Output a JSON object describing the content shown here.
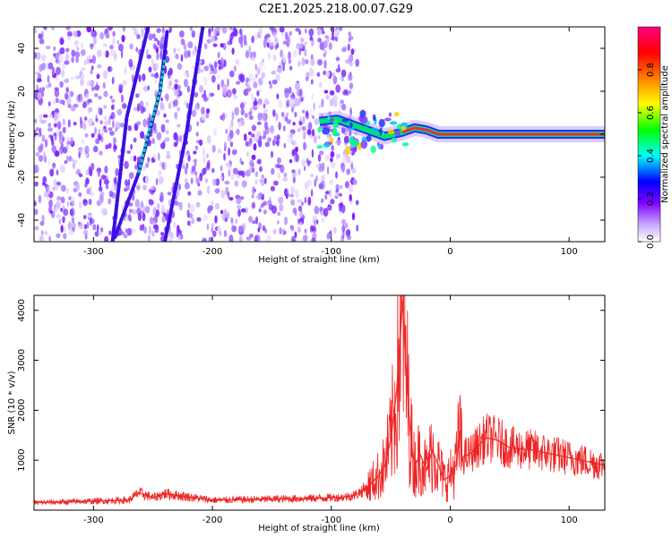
{
  "title": "C2E1.2025.218.00.07.G29",
  "chart_data": [
    {
      "type": "heatmap",
      "xlabel": "Height of straight line (km)",
      "ylabel": "Frequency (Hz)",
      "xlim": [
        -350,
        130
      ],
      "ylim": [
        -50,
        50
      ],
      "x_ticks": [
        -300,
        -200,
        -100,
        0,
        100
      ],
      "x_tick_labels": [
        "-300",
        "-200",
        "-100",
        "0",
        "100"
      ],
      "y_ticks": [
        -40,
        -20,
        0,
        20,
        40
      ],
      "y_tick_labels": [
        "-40",
        "-20",
        "0",
        "20",
        "40"
      ],
      "colorbar": {
        "label": "Normalized spectral amplitude",
        "range": [
          0,
          1
        ],
        "ticks": [
          0,
          0.2,
          0.4,
          0.6,
          0.8
        ],
        "tick_labels": [
          "0.0",
          "0.2",
          "0.4",
          "0.6",
          "0.8"
        ],
        "colormap": [
          "#ffffff",
          "#8000ff",
          "#0000ff",
          "#00ffff",
          "#00ff00",
          "#ffff00",
          "#ff8000",
          "#ff0000",
          "#ff0080"
        ]
      },
      "noise_region_x": [
        -350,
        -78
      ],
      "features": [
        {
          "name": "interference-streak-1",
          "points": [
            [
              -282,
              -48
            ],
            [
              -262,
              -18
            ],
            [
              -244,
              20
            ],
            [
              -238,
              48
            ]
          ]
        },
        {
          "name": "interference-streak-2",
          "points": [
            [
              -284,
              -50
            ],
            [
              -272,
              8
            ],
            [
              -254,
              50
            ]
          ]
        },
        {
          "name": "interference-streak-3",
          "points": [
            [
              -240,
              -50
            ],
            [
              -222,
              0
            ],
            [
              -208,
              50
            ]
          ]
        }
      ],
      "main_signal": [
        [
          -110,
          6
        ],
        [
          -95,
          7
        ],
        [
          -85,
          5
        ],
        [
          -70,
          2
        ],
        [
          -55,
          -1
        ],
        [
          -40,
          1
        ],
        [
          -30,
          3
        ],
        [
          -20,
          2
        ],
        [
          -10,
          0
        ],
        [
          0,
          0
        ],
        [
          10,
          0
        ],
        [
          30,
          0
        ],
        [
          60,
          0
        ],
        [
          100,
          0
        ],
        [
          130,
          0
        ]
      ]
    },
    {
      "type": "line",
      "xlabel": "Height of straight line (km)",
      "ylabel": "SNR (10 * v/v)",
      "xlim": [
        -350,
        130
      ],
      "ylim": [
        0,
        4300
      ],
      "x_ticks": [
        -300,
        -200,
        -100,
        0,
        100
      ],
      "x_tick_labels": [
        "-300",
        "-200",
        "-100",
        "0",
        "100"
      ],
      "y_ticks": [
        1000,
        2000,
        3000,
        4000
      ],
      "y_tick_labels": [
        "1000",
        "2000",
        "3000",
        "4000"
      ],
      "color": "#ee2222",
      "x": [
        -350,
        -300,
        -270,
        -262,
        -250,
        -240,
        -200,
        -150,
        -110,
        -90,
        -80,
        -70,
        -60,
        -55,
        -50,
        -45,
        -42,
        -40,
        -38,
        -35,
        -32,
        -30,
        -25,
        -20,
        -15,
        -10,
        -5,
        0,
        5,
        8,
        10,
        12,
        15,
        20,
        30,
        40,
        50,
        70,
        100,
        130
      ],
      "y": [
        150,
        180,
        200,
        350,
        250,
        330,
        200,
        220,
        240,
        260,
        300,
        450,
        700,
        900,
        1400,
        2400,
        3500,
        4200,
        3200,
        2000,
        1200,
        900,
        1100,
        800,
        1200,
        900,
        600,
        700,
        900,
        1600,
        1000,
        1100,
        1100,
        1200,
        1450,
        1400,
        1250,
        1200,
        1050,
        900
      ]
    }
  ]
}
